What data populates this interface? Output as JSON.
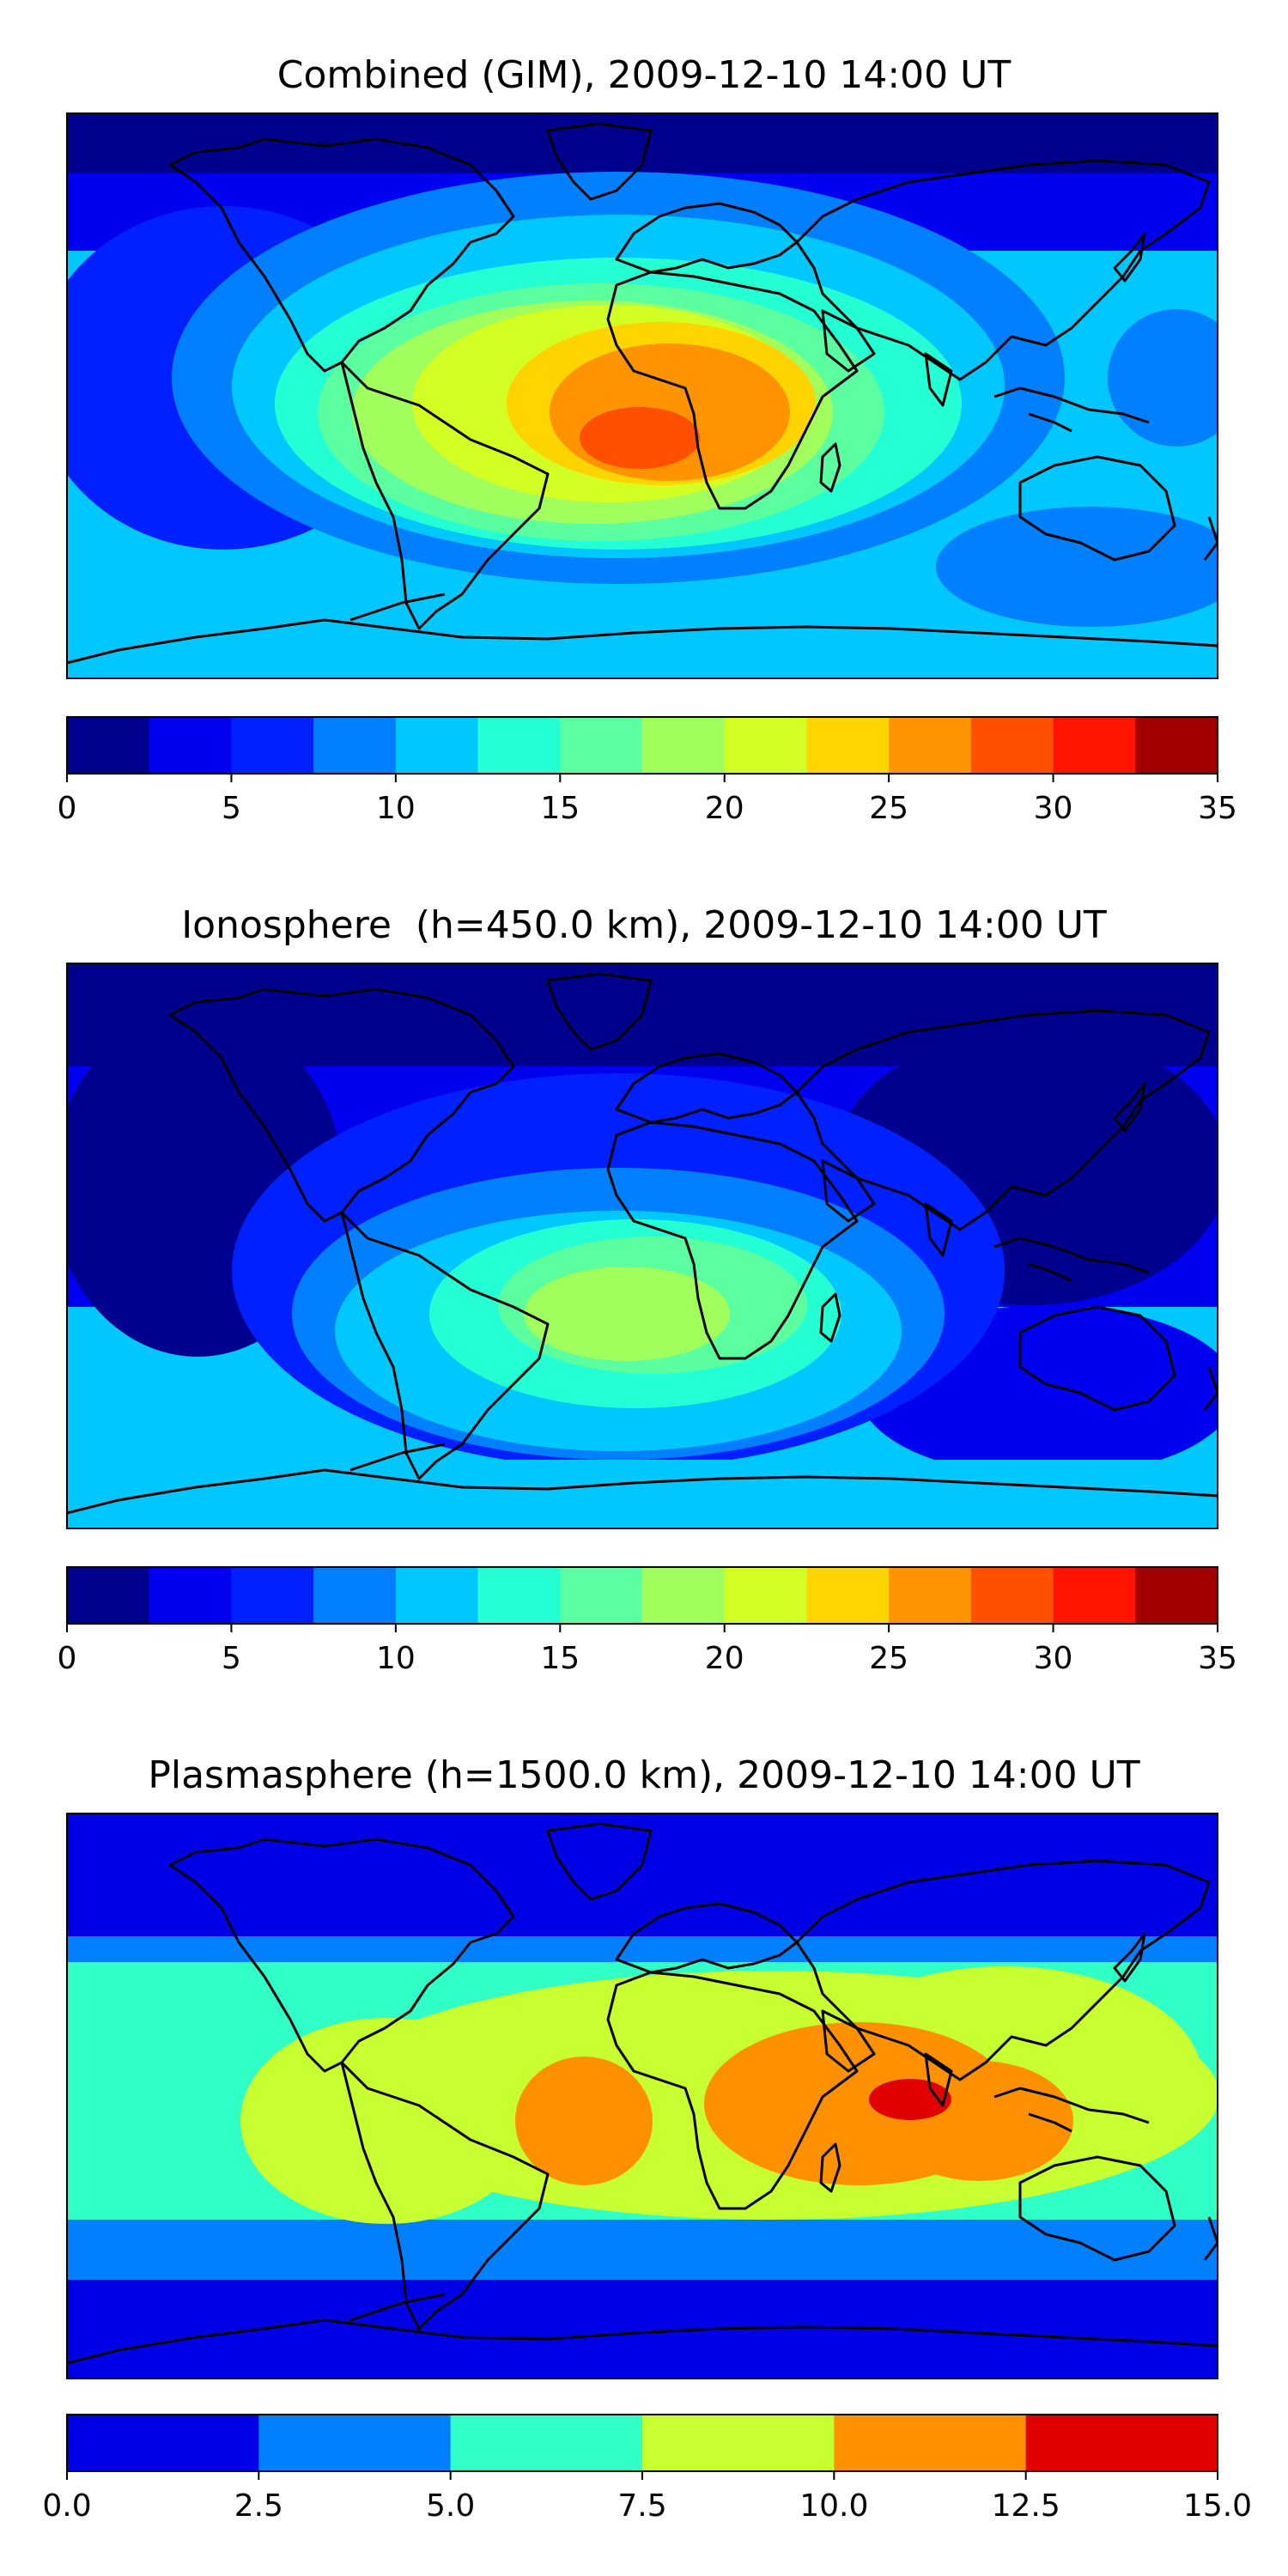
{
  "panels": [
    {
      "title": "Combined (GIM), 2009-12-10 14:00 UT",
      "colorbar": {
        "ticks": [
          "0",
          "5",
          "10",
          "15",
          "20",
          "25",
          "30",
          "35"
        ],
        "min": 0,
        "max": 35,
        "step": 2.5,
        "colors": [
          "#00008f",
          "#0000f0",
          "#0020ff",
          "#0080ff",
          "#00c8ff",
          "#25ffd4",
          "#5cffa0",
          "#a0ff5c",
          "#d4ff25",
          "#ffd400",
          "#ff9400",
          "#ff5000",
          "#ff1400",
          "#a00000"
        ]
      }
    },
    {
      "title": "Ionosphere  (h=450.0 km), 2009-12-10 14:00 UT",
      "colorbar": {
        "ticks": [
          "0",
          "5",
          "10",
          "15",
          "20",
          "25",
          "30",
          "35"
        ],
        "min": 0,
        "max": 35,
        "step": 2.5,
        "colors": [
          "#00008f",
          "#0000f0",
          "#0020ff",
          "#0080ff",
          "#00c8ff",
          "#25ffd4",
          "#5cffa0",
          "#a0ff5c",
          "#d4ff25",
          "#ffd400",
          "#ff9400",
          "#ff5000",
          "#ff1400",
          "#a00000"
        ]
      }
    },
    {
      "title": "Plasmasphere (h=1500.0 km), 2009-12-10 14:00 UT",
      "colorbar": {
        "ticks": [
          "0.0",
          "2.5",
          "5.0",
          "7.5",
          "10.0",
          "12.5",
          "15.0"
        ],
        "min": 0,
        "max": 15,
        "step": 2.5,
        "colors": [
          "#0000e6",
          "#0080ff",
          "#30ffc8",
          "#c8ff30",
          "#ff9000",
          "#e00000"
        ]
      }
    }
  ]
}
